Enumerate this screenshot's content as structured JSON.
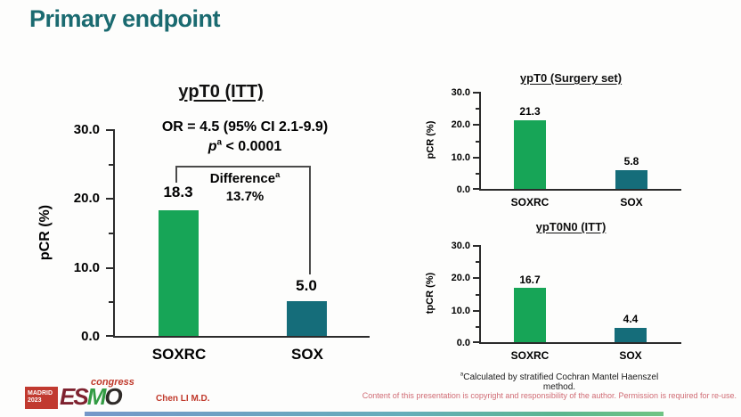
{
  "slide": {
    "title": "Primary endpoint",
    "colors": {
      "title_teal": "#1a6a70",
      "bar_green": "#17a557",
      "bar_teal": "#156d7a",
      "logo_red": "#c0392b",
      "copyright_red": "#d06b74"
    }
  },
  "chart_data": [
    {
      "type": "bar",
      "title": "ypT0 (ITT)",
      "ylabel": "pCR (%)",
      "ylim": [
        0,
        30
      ],
      "yticks": [
        "30.0",
        "20.0",
        "10.0",
        "0.0"
      ],
      "categories": [
        "SOXRC",
        "SOX"
      ],
      "values": [
        18.3,
        5.0
      ],
      "value_labels": [
        "18.3",
        "5.0"
      ],
      "bar_colors": [
        "#17a557",
        "#156d7a"
      ],
      "legend_position": "none",
      "grid": false,
      "annotations": {
        "or_line": "OR = 4.5 (95% CI 2.1-9.9)",
        "p_italic": "p",
        "p_sup": "a",
        "p_rest": " < 0.0001",
        "difference_label": "Difference",
        "difference_sup": "a",
        "difference_value": "13.7%"
      }
    },
    {
      "type": "bar",
      "title": "ypT0 (Surgery set)",
      "ylabel": "pCR (%)",
      "ylim": [
        0,
        30
      ],
      "yticks": [
        "30.0",
        "20.0",
        "10.0",
        "0.0"
      ],
      "categories": [
        "SOXRC",
        "SOX"
      ],
      "values": [
        21.3,
        5.8
      ],
      "value_labels": [
        "21.3",
        "5.8"
      ],
      "bar_colors": [
        "#17a557",
        "#156d7a"
      ],
      "legend_position": "none",
      "grid": false
    },
    {
      "type": "bar",
      "title": "ypT0N0 (ITT)",
      "ylabel": "tpCR (%)",
      "ylim": [
        0,
        30
      ],
      "yticks": [
        "30.0",
        "20.0",
        "10.0",
        "0.0"
      ],
      "categories": [
        "SOXRC",
        "SOX"
      ],
      "values": [
        16.7,
        4.4
      ],
      "value_labels": [
        "16.7",
        "4.4"
      ],
      "bar_colors": [
        "#17a557",
        "#156d7a"
      ],
      "legend_position": "none",
      "grid": false
    }
  ],
  "footnote": {
    "sup": "a",
    "text": "Calculated by stratified Cochran Mantel Haenszel method."
  },
  "footer": {
    "logo": {
      "madrid": "MADRID",
      "year": "2023",
      "esmo_es": "ES",
      "esmo_m": "M",
      "esmo_o": "O",
      "congress": "congress"
    },
    "author": "Chen LI M.D.",
    "copyright": "Content of this presentation is copyright and responsibility of the author. Permission is required for re-use."
  }
}
